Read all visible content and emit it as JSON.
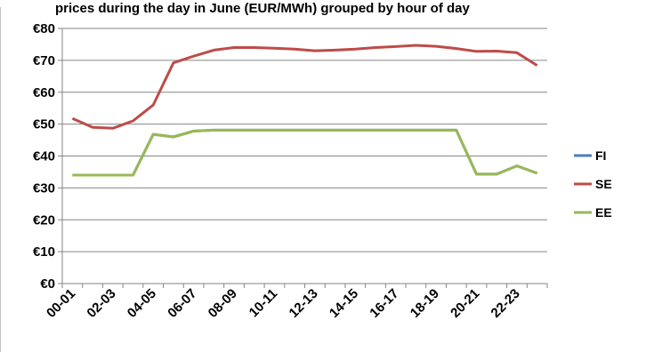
{
  "chart_data": {
    "type": "line",
    "title": "prices during the day in June (EUR/MWh) grouped by hour of day",
    "xlabel": "",
    "ylabel": "",
    "ylim": [
      0,
      80
    ],
    "yticks": [
      {
        "value": 0,
        "label": "€0"
      },
      {
        "value": 10,
        "label": "€10"
      },
      {
        "value": 20,
        "label": "€20"
      },
      {
        "value": 30,
        "label": "€30"
      },
      {
        "value": 40,
        "label": "€40"
      },
      {
        "value": 50,
        "label": "€50"
      },
      {
        "value": 60,
        "label": "€60"
      },
      {
        "value": 70,
        "label": "€70"
      },
      {
        "value": 80,
        "label": "€80"
      }
    ],
    "categories": [
      "00-01",
      "01-02",
      "02-03",
      "03-04",
      "04-05",
      "05-06",
      "06-07",
      "07-08",
      "08-09",
      "09-10",
      "10-11",
      "11-12",
      "12-13",
      "13-14",
      "14-15",
      "15-16",
      "16-17",
      "17-18",
      "18-19",
      "19-20",
      "20-21",
      "21-22",
      "22-23",
      "23-24"
    ],
    "shown_tick_labels": [
      "00-01",
      "02-03",
      "04-05",
      "06-07",
      "08-09",
      "10-11",
      "12-13",
      "14-15",
      "16-17",
      "18-19",
      "20-21",
      "22-23"
    ],
    "grid": true,
    "legend_placement": "right",
    "series": [
      {
        "name": "FI",
        "color": "#4a7ebb",
        "values": [
          34,
          34,
          34,
          34,
          46.8,
          46,
          47.8,
          48.1,
          48.1,
          48.1,
          48.1,
          48.1,
          48.1,
          48.1,
          48.1,
          48.1,
          48.1,
          48.1,
          48.1,
          48.1,
          34.3,
          34.3,
          36.9,
          34.6
        ]
      },
      {
        "name": "SE",
        "color": "#be4b48",
        "values": [
          51.8,
          49,
          48.7,
          51,
          56,
          69.2,
          71.3,
          73.2,
          74,
          74,
          73.8,
          73.5,
          73,
          73.2,
          73.5,
          74,
          74.3,
          74.7,
          74.4,
          73.7,
          72.8,
          72.9,
          72.4,
          68.4
        ]
      },
      {
        "name": "EE",
        "color": "#98b954",
        "values": [
          34,
          34,
          34,
          34,
          46.8,
          46,
          47.8,
          48.1,
          48.1,
          48.1,
          48.1,
          48.1,
          48.1,
          48.1,
          48.1,
          48.1,
          48.1,
          48.1,
          48.1,
          48.1,
          34.3,
          34.3,
          36.9,
          34.6
        ]
      }
    ]
  }
}
